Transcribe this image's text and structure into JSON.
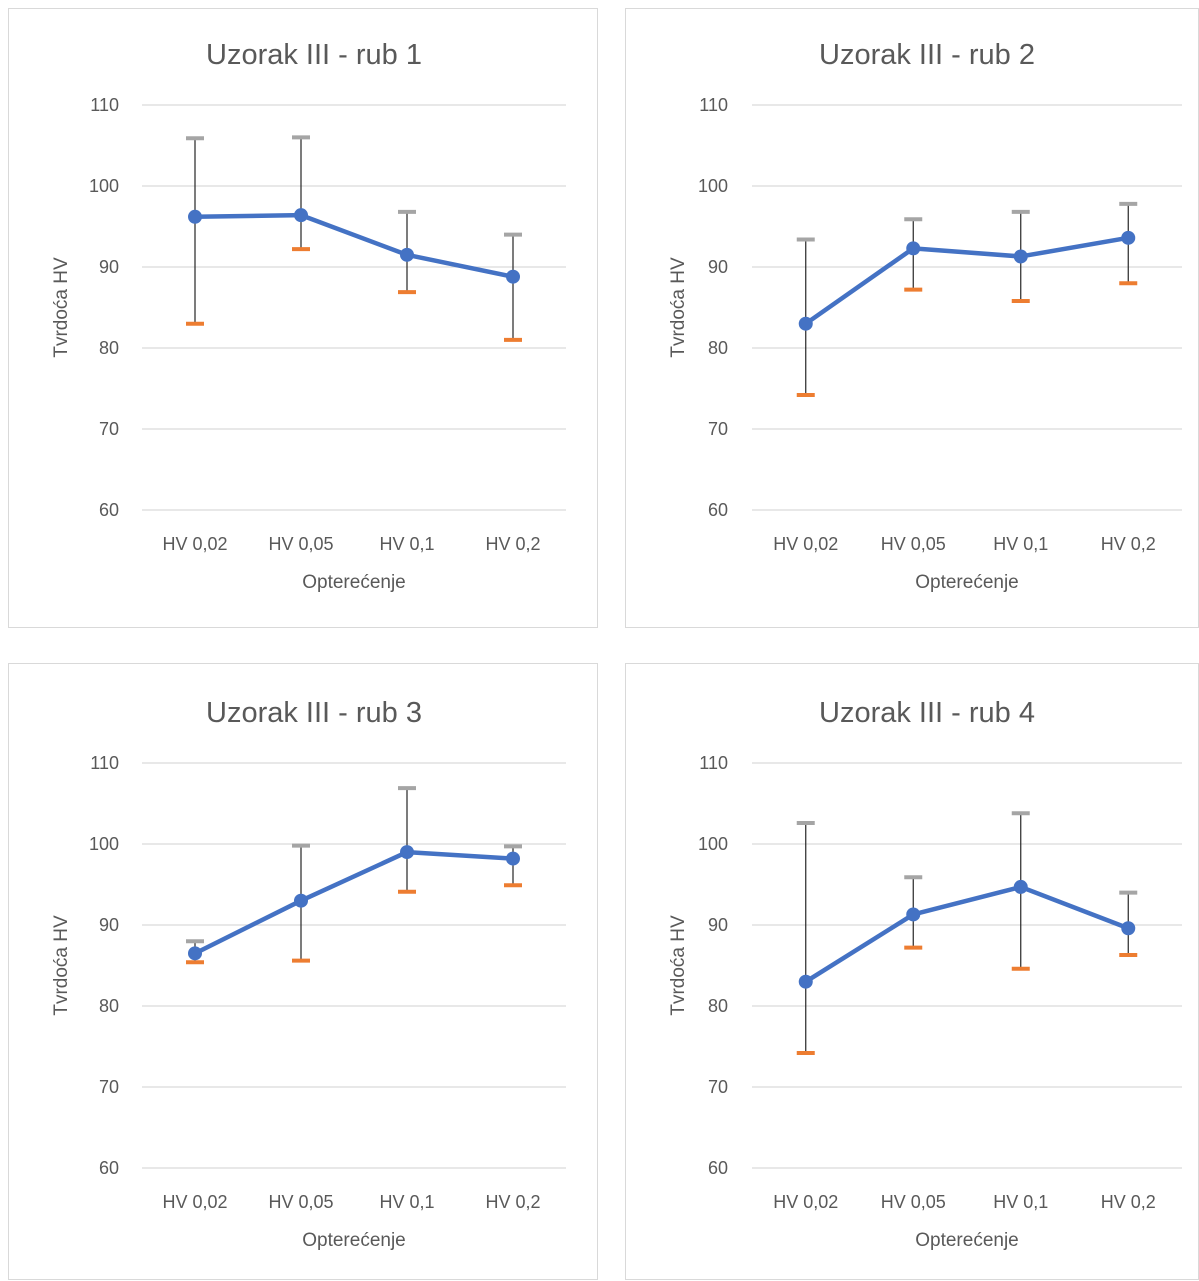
{
  "style": {
    "line_color": "#4472c4",
    "error_plus_cap_color": "#a5a5a5",
    "error_minus_cap_color": "#ed7d31",
    "error_bar_color": "#262626",
    "grid_color": "#d9d9d9",
    "text_color": "#595959"
  },
  "chart_data": [
    {
      "type": "line",
      "title": "Uzorak III - rub 1",
      "xlabel": "Opterećenje",
      "ylabel": "Tvrdoća HV",
      "categories": [
        "HV 0,02",
        "HV 0,05",
        "HV 0,1",
        "HV 0,2"
      ],
      "values": [
        96.2,
        96.4,
        91.5,
        88.8
      ],
      "error_plus": [
        105.9,
        106.0,
        96.8,
        94.0
      ],
      "error_minus": [
        83.0,
        92.2,
        86.9,
        81.0
      ],
      "ylim": [
        60,
        110
      ],
      "yticks": [
        60,
        70,
        80,
        90,
        100,
        110
      ],
      "grid": true
    },
    {
      "type": "line",
      "title": "Uzorak III - rub 2",
      "xlabel": "Opterećenje",
      "ylabel": "Tvrdoća HV",
      "categories": [
        "HV 0,02",
        "HV 0,05",
        "HV 0,1",
        "HV 0,2"
      ],
      "values": [
        83.0,
        92.3,
        91.3,
        93.6
      ],
      "error_plus": [
        93.4,
        95.9,
        96.8,
        97.8
      ],
      "error_minus": [
        74.2,
        87.2,
        85.8,
        88.0
      ],
      "ylim": [
        60,
        110
      ],
      "yticks": [
        60,
        70,
        80,
        90,
        100,
        110
      ],
      "grid": true
    },
    {
      "type": "line",
      "title": "Uzorak III - rub 3",
      "xlabel": "Opterećenje",
      "ylabel": "Tvrdoća HV",
      "categories": [
        "HV 0,02",
        "HV 0,05",
        "HV 0,1",
        "HV 0,2"
      ],
      "values": [
        86.5,
        93.0,
        99.0,
        98.2
      ],
      "error_plus": [
        88.0,
        99.8,
        106.9,
        99.7
      ],
      "error_minus": [
        85.4,
        85.6,
        94.1,
        94.9
      ],
      "ylim": [
        60,
        110
      ],
      "yticks": [
        60,
        70,
        80,
        90,
        100,
        110
      ],
      "grid": true
    },
    {
      "type": "line",
      "title": "Uzorak III - rub 4",
      "xlabel": "Opterećenje",
      "ylabel": "Tvrdoća HV",
      "categories": [
        "HV 0,02",
        "HV 0,05",
        "HV 0,1",
        "HV 0,2"
      ],
      "values": [
        83.0,
        91.3,
        94.7,
        89.6
      ],
      "error_plus": [
        102.6,
        95.9,
        103.8,
        94.0
      ],
      "error_minus": [
        74.2,
        87.2,
        84.6,
        86.3
      ],
      "ylim": [
        60,
        110
      ],
      "yticks": [
        60,
        70,
        80,
        90,
        100,
        110
      ],
      "grid": true
    }
  ]
}
